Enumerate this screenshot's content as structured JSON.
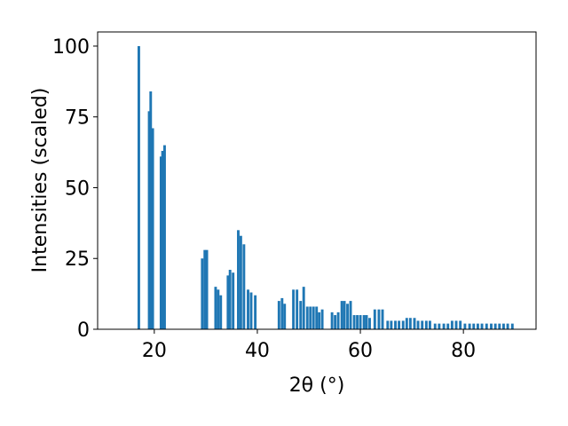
{
  "chart_data": {
    "type": "bar",
    "x_label": "2θ (°)",
    "y_label": "Intensities (scaled)",
    "x": [
      17.0,
      19.0,
      19.3,
      19.7,
      21.3,
      21.6,
      22.0,
      29.3,
      29.8,
      30.2,
      31.9,
      32.4,
      32.9,
      34.3,
      34.7,
      35.3,
      36.3,
      36.8,
      37.4,
      38.2,
      38.8,
      39.6,
      44.2,
      44.8,
      45.3,
      47.0,
      47.7,
      48.4,
      49.0,
      49.7,
      50.3,
      50.9,
      51.5,
      52.0,
      52.6,
      54.5,
      55.1,
      55.7,
      56.4,
      56.9,
      57.5,
      58.1,
      58.8,
      59.4,
      60.0,
      60.7,
      61.2,
      61.8,
      62.8,
      63.6,
      64.3,
      65.3,
      66.0,
      66.8,
      67.5,
      68.3,
      69.0,
      69.7,
      70.5,
      71.2,
      72.0,
      72.8,
      73.5,
      74.5,
      75.3,
      76.2,
      77.0,
      77.8,
      78.6,
      79.4,
      80.3,
      81.2,
      82.0,
      82.8,
      83.6,
      84.5,
      85.4,
      86.2,
      87.0,
      87.8,
      88.6,
      89.5
    ],
    "values": [
      100,
      77,
      84,
      71,
      61,
      63,
      65,
      25,
      28,
      28,
      15,
      14,
      12,
      19,
      21,
      20,
      35,
      33,
      30,
      14,
      13,
      12,
      10,
      11,
      9,
      14,
      14,
      10,
      15,
      8,
      8,
      8,
      8,
      6,
      7,
      6,
      5,
      6,
      10,
      10,
      9,
      10,
      5,
      5,
      5,
      5,
      5,
      4,
      7,
      7,
      7,
      3,
      3,
      3,
      3,
      3,
      4,
      4,
      4,
      3,
      3,
      3,
      3,
      2,
      2,
      2,
      2,
      3,
      3,
      3,
      2,
      2,
      2,
      2,
      2,
      2,
      2,
      2,
      2,
      2,
      2,
      2
    ],
    "color": "#1f77b4",
    "xlim": [
      9,
      94.1
    ],
    "ylim": [
      0,
      105
    ],
    "xticks": [
      20,
      40,
      60,
      80
    ],
    "yticks": [
      0,
      25,
      50,
      75,
      100
    ]
  }
}
